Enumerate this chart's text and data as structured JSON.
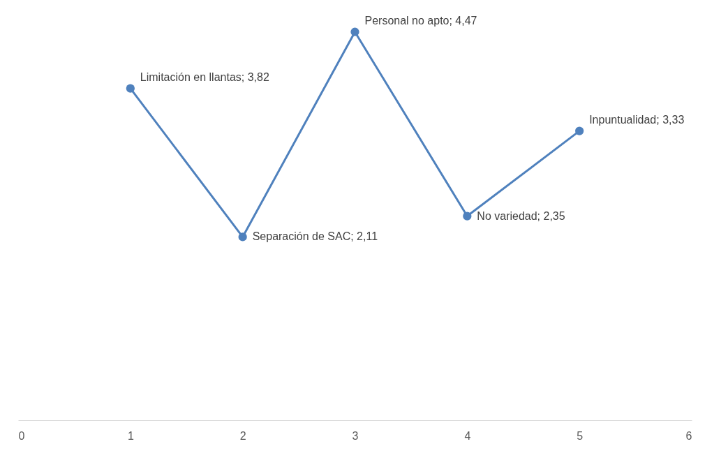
{
  "chart_data": {
    "type": "line",
    "x": [
      1,
      2,
      3,
      4,
      5
    ],
    "series": [
      {
        "color": "#4f81bd",
        "values": [
          3.82,
          2.11,
          4.47,
          2.35,
          3.33
        ],
        "value_labels": [
          "Limitación en llantas; 3,82",
          "Separación de SAC; 2,11",
          "Personal no apto; 4,47",
          "No variedad; 2,35",
          "Inpuntualidad; 3,33"
        ]
      }
    ],
    "xlim": [
      0,
      6
    ],
    "xticks": [
      0,
      1,
      2,
      3,
      4,
      5,
      6
    ],
    "tick_labels": "x",
    "grid": false,
    "marker": "circle",
    "line_style": "solid"
  }
}
